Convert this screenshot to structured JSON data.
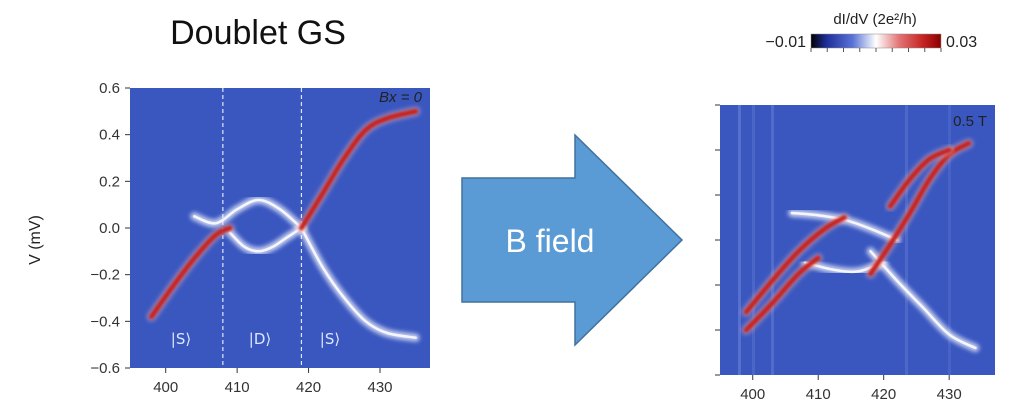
{
  "title": "Doublet GS",
  "arrow_label": "B field",
  "colorbar": {
    "label": "dI/dV (2e²/h)",
    "min_label": "−0.01",
    "max_label": "0.03",
    "colors": [
      "#000000",
      "#1e2f9a",
      "#5a72d6",
      "#ffffff",
      "#e27373",
      "#c62424",
      "#8a0000"
    ]
  },
  "colors": {
    "background": "#3a57c0",
    "curve_red": "#c8201e",
    "curve_white": "#f2f4ff",
    "arrow": "#5b9bd5",
    "arrow_edge": "#41719c"
  },
  "panels": [
    {
      "corner_label": "Bx = 0",
      "ylabel": "V (mV)",
      "x_ticks": [
        "400",
        "410",
        "420",
        "430"
      ],
      "y_ticks": [
        "0.6",
        "0.4",
        "0.2",
        "0.0",
        "−0.2",
        "−0.4",
        "−0.6"
      ],
      "region_labels": [
        "|S⟩",
        "|D⟩",
        "|S⟩"
      ],
      "dashed_lines_at": [
        408,
        419
      ]
    },
    {
      "corner_label": "0.5 T",
      "x_ticks": [
        "400",
        "410",
        "420",
        "430"
      ]
    }
  ],
  "chart_data": [
    {
      "type": "heatmap",
      "title": "Doublet GS",
      "xlabel": "",
      "ylabel": "V (mV)",
      "xlim": [
        395,
        437
      ],
      "ylim": [
        -0.6,
        0.6
      ],
      "condition": "Bx = 0",
      "colorscale_range": [
        -0.01,
        0.03
      ],
      "dashed_lines_x": [
        408,
        419
      ],
      "series": [
        {
          "name": "",
          "color": "red",
          "x": [
            398,
            401,
            404,
            407,
            409
          ],
          "y": [
            -0.38,
            -0.25,
            -0.13,
            -0.03,
            0.0
          ]
        },
        {
          "name": "",
          "color": "white",
          "x": [
            404,
            407,
            410,
            413,
            416,
            419
          ],
          "y": [
            0.05,
            0.02,
            0.08,
            0.12,
            0.08,
            0.0
          ]
        },
        {
          "name": "",
          "color": "white",
          "x": [
            409,
            411,
            413,
            415,
            417,
            419
          ],
          "y": [
            -0.02,
            -0.08,
            -0.1,
            -0.08,
            -0.04,
            0.0
          ]
        },
        {
          "name": "",
          "color": "red",
          "x": [
            419,
            422,
            425,
            428,
            431,
            435
          ],
          "y": [
            0.0,
            0.15,
            0.3,
            0.42,
            0.47,
            0.5
          ]
        },
        {
          "name": "",
          "color": "white",
          "x": [
            419,
            422,
            425,
            428,
            431,
            435
          ],
          "y": [
            0.0,
            -0.17,
            -0.3,
            -0.4,
            -0.45,
            -0.47
          ]
        }
      ]
    },
    {
      "type": "heatmap",
      "xlabel": "",
      "ylabel": "",
      "xlim": [
        395,
        437
      ],
      "ylim": [
        -0.6,
        0.6
      ],
      "condition": "0.5 T",
      "colorscale_range": [
        -0.01,
        0.03
      ],
      "series": [
        {
          "name": "",
          "color": "red",
          "x": [
            399,
            403,
            407,
            411,
            414
          ],
          "y": [
            -0.32,
            -0.18,
            -0.05,
            0.05,
            0.1
          ]
        },
        {
          "name": "",
          "color": "red",
          "x": [
            399,
            403,
            407,
            410
          ],
          "y": [
            -0.4,
            -0.28,
            -0.15,
            -0.08
          ]
        },
        {
          "name": "",
          "color": "white",
          "x": [
            406,
            410,
            414,
            418,
            422
          ],
          "y": [
            0.12,
            0.11,
            0.09,
            0.05,
            0.0
          ]
        },
        {
          "name": "",
          "color": "white",
          "x": [
            408,
            412,
            416,
            420
          ],
          "y": [
            -0.1,
            -0.13,
            -0.14,
            -0.1
          ]
        },
        {
          "name": "",
          "color": "red",
          "x": [
            418,
            421,
            424,
            427,
            430,
            433
          ],
          "y": [
            -0.15,
            -0.02,
            0.12,
            0.27,
            0.38,
            0.43
          ]
        },
        {
          "name": "",
          "color": "red",
          "x": [
            421,
            424,
            427,
            430
          ],
          "y": [
            0.15,
            0.27,
            0.36,
            0.4
          ]
        },
        {
          "name": "",
          "color": "white",
          "x": [
            418,
            422,
            426,
            430,
            434
          ],
          "y": [
            -0.05,
            -0.18,
            -0.3,
            -0.42,
            -0.48
          ]
        }
      ]
    }
  ]
}
